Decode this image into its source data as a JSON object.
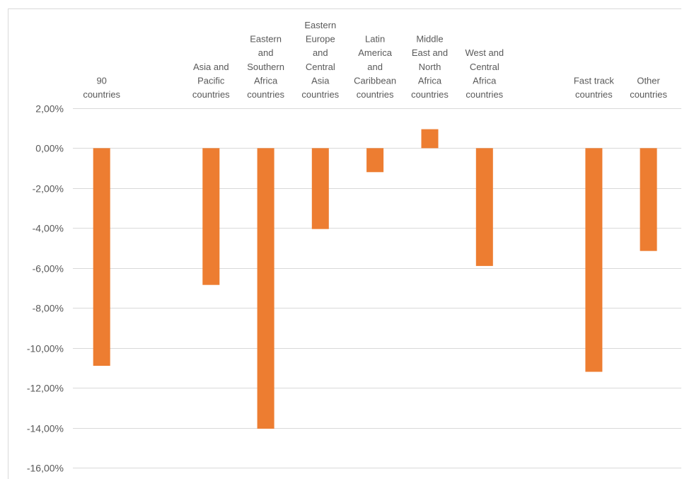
{
  "chart_data": {
    "type": "bar",
    "title": "",
    "xlabel": "",
    "ylabel": "",
    "categories": [
      "90 countries",
      "",
      "Asia and Pacific countries",
      "Eastern and Southern Africa countries",
      "Eastern Europe and Central Asia countries",
      "Latin America and Caribbean countries",
      "Middle East and North Africa countries",
      "West and Central Africa countries",
      "",
      "Fast track countries",
      "Other countries"
    ],
    "category_lines": [
      [
        "90",
        "countries"
      ],
      [],
      [
        "Asia and",
        "Pacific",
        "countries"
      ],
      [
        "Eastern",
        "and",
        "Southern",
        "Africa",
        "countries"
      ],
      [
        "Eastern",
        "Europe",
        "and",
        "Central",
        "Asia",
        "countries"
      ],
      [
        "Latin",
        "America",
        "and",
        "Caribbean",
        "countries"
      ],
      [
        "Middle",
        "East and",
        "North",
        "Africa",
        "countries"
      ],
      [
        "West and",
        "Central",
        "Africa",
        "countries"
      ],
      [],
      [
        "Fast track",
        "countries"
      ],
      [
        "Other",
        "countries"
      ]
    ],
    "values": [
      -10.9,
      null,
      -6.85,
      -14.05,
      -4.05,
      -1.2,
      0.95,
      -5.9,
      null,
      -11.2,
      -5.15
    ],
    "ylim": [
      -16,
      2
    ],
    "yticks": [
      2,
      0,
      -2,
      -4,
      -6,
      -8,
      -10,
      -12,
      -14,
      -16
    ],
    "ytick_labels": [
      "2,00%",
      "0,00%",
      "-2,00%",
      "-4,00%",
      "-6,00%",
      "-8,00%",
      "-10,00%",
      "-12,00%",
      "-14,00%",
      "-16,00%"
    ],
    "grid": true,
    "legend": "none",
    "bar_color": "#ed7d31"
  }
}
